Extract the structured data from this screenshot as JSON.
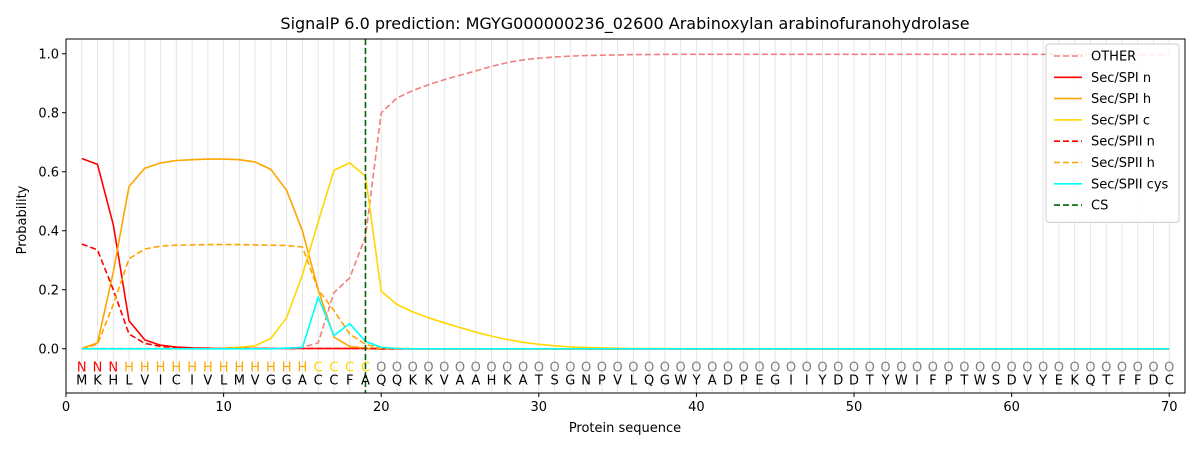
{
  "chart_data": {
    "type": "line",
    "title": "SignalP 6.0 prediction: MGYG000000236_02600 Arabinoxylan arabinofuranohydrolase",
    "xlabel": "Protein sequence",
    "ylabel": "Probability",
    "xlim": [
      0,
      71
    ],
    "ylim": [
      -0.15,
      1.05
    ],
    "xticks": [
      0,
      10,
      20,
      30,
      40,
      50,
      60,
      70
    ],
    "yticks": [
      0.0,
      0.2,
      0.4,
      0.6,
      0.8,
      1.0
    ],
    "xtick_labels": [
      "0",
      "10",
      "20",
      "30",
      "40",
      "50",
      "60",
      "70"
    ],
    "ytick_labels": [
      "0.0",
      "0.2",
      "0.4",
      "0.6",
      "0.8",
      "1.0"
    ],
    "grid": "vertical lines at each residue",
    "legend_position": "top-right",
    "sequence": [
      "M",
      "K",
      "H",
      "L",
      "V",
      "I",
      "C",
      "I",
      "V",
      "L",
      "M",
      "V",
      "G",
      "G",
      "A",
      "C",
      "C",
      "F",
      "A",
      "Q",
      "Q",
      "K",
      "K",
      "V",
      "A",
      "A",
      "H",
      "K",
      "A",
      "T",
      "S",
      "G",
      "N",
      "P",
      "V",
      "L",
      "Q",
      "G",
      "W",
      "Y",
      "A",
      "D",
      "P",
      "E",
      "G",
      "I",
      "I",
      "Y",
      "D",
      "D",
      "T",
      "Y",
      "W",
      "I",
      "F",
      "P",
      "T",
      "W",
      "S",
      "D",
      "V",
      "Y",
      "E",
      "K",
      "Q",
      "T",
      "F",
      "F",
      "D",
      "C"
    ],
    "labels": [
      "N",
      "N",
      "N",
      "H",
      "H",
      "H",
      "H",
      "H",
      "H",
      "H",
      "H",
      "H",
      "H",
      "H",
      "H",
      "C",
      "C",
      "C",
      "C",
      "O",
      "O",
      "O",
      "O",
      "O",
      "O",
      "O",
      "O",
      "O",
      "O",
      "O",
      "O",
      "O",
      "O",
      "O",
      "O",
      "O",
      "O",
      "O",
      "O",
      "O",
      "O",
      "O",
      "O",
      "O",
      "O",
      "O",
      "O",
      "O",
      "O",
      "O",
      "O",
      "O",
      "O",
      "O",
      "O",
      "O",
      "O",
      "O",
      "O",
      "O",
      "O",
      "O",
      "O",
      "O",
      "O",
      "O",
      "O",
      "O",
      "O",
      "O"
    ],
    "label_colors": {
      "N": "#ff0000",
      "H": "#ffa500",
      "C": "#ffd700",
      "O": "#808080"
    },
    "cs_position": 19,
    "series": [
      {
        "name": "OTHER",
        "color": "#f08080",
        "dash": "dashed",
        "values": [
          0.001,
          0.001,
          0.001,
          0.001,
          0.001,
          0.001,
          0.001,
          0.001,
          0.001,
          0.001,
          0.001,
          0.001,
          0.001,
          0.002,
          0.005,
          0.02,
          0.19,
          0.24,
          0.38,
          0.8,
          0.85,
          0.875,
          0.895,
          0.912,
          0.927,
          0.942,
          0.957,
          0.97,
          0.979,
          0.985,
          0.989,
          0.992,
          0.994,
          0.995,
          0.996,
          0.997,
          0.997,
          0.998,
          0.998,
          0.998,
          0.998,
          0.998,
          0.998,
          0.998,
          0.998,
          0.998,
          0.998,
          0.998,
          0.998,
          0.998,
          0.998,
          0.998,
          0.998,
          0.998,
          0.998,
          0.998,
          0.998,
          0.998,
          0.998,
          0.998,
          0.998,
          0.998,
          0.997,
          0.997,
          0.997,
          0.997,
          0.997,
          0.997,
          0.997,
          0.996
        ]
      },
      {
        "name": "Sec/SPI n",
        "color": "#ff0000",
        "dash": "solid",
        "values": [
          0.645,
          0.625,
          0.42,
          0.095,
          0.03,
          0.012,
          0.006,
          0.003,
          0.002,
          0.001,
          0.001,
          0.001,
          0.001,
          0.001,
          0.001,
          0.001,
          0.001,
          0.001,
          0.001,
          0,
          0,
          0,
          0,
          0,
          0,
          0,
          0,
          0,
          0,
          0,
          0,
          0,
          0,
          0,
          0,
          0,
          0,
          0,
          0,
          0,
          0,
          0,
          0,
          0,
          0,
          0,
          0,
          0,
          0,
          0,
          0,
          0,
          0,
          0,
          0,
          0,
          0,
          0,
          0,
          0,
          0,
          0,
          0,
          0,
          0,
          0,
          0,
          0,
          0,
          0
        ]
      },
      {
        "name": "Sec/SPI h",
        "color": "#ffa500",
        "dash": "solid",
        "values": [
          0.001,
          0.02,
          0.26,
          0.55,
          0.612,
          0.63,
          0.638,
          0.641,
          0.643,
          0.643,
          0.641,
          0.633,
          0.608,
          0.537,
          0.4,
          0.2,
          0.04,
          0.008,
          0.002,
          0.001,
          0.001,
          0,
          0,
          0,
          0,
          0,
          0,
          0,
          0,
          0,
          0,
          0,
          0,
          0,
          0,
          0,
          0,
          0,
          0,
          0,
          0,
          0,
          0,
          0,
          0,
          0,
          0,
          0,
          0,
          0,
          0,
          0,
          0,
          0,
          0,
          0,
          0,
          0,
          0,
          0,
          0,
          0,
          0,
          0,
          0,
          0,
          0,
          0,
          0,
          0
        ]
      },
      {
        "name": "Sec/SPI c",
        "color": "#ffd700",
        "dash": "solid",
        "values": [
          0,
          0,
          0,
          0,
          0,
          0,
          0,
          0,
          0,
          0.002,
          0.005,
          0.01,
          0.035,
          0.105,
          0.25,
          0.43,
          0.605,
          0.63,
          0.585,
          0.195,
          0.15,
          0.125,
          0.105,
          0.088,
          0.072,
          0.056,
          0.043,
          0.031,
          0.022,
          0.015,
          0.01,
          0.006,
          0.004,
          0.003,
          0.002,
          0.001,
          0.001,
          0.001,
          0,
          0,
          0,
          0,
          0,
          0,
          0,
          0,
          0,
          0,
          0,
          0,
          0,
          0,
          0,
          0,
          0,
          0,
          0,
          0,
          0,
          0,
          0,
          0,
          0,
          0,
          0,
          0,
          0,
          0,
          0,
          0
        ]
      },
      {
        "name": "Sec/SPII n",
        "color": "#ff0000",
        "dash": "dashed",
        "values": [
          0.355,
          0.335,
          0.2,
          0.05,
          0.018,
          0.008,
          0.004,
          0.002,
          0.001,
          0.001,
          0.001,
          0.001,
          0.001,
          0.001,
          0.001,
          0.001,
          0.001,
          0.001,
          0.001,
          0,
          0,
          0,
          0,
          0,
          0,
          0,
          0,
          0,
          0,
          0,
          0,
          0,
          0,
          0,
          0,
          0,
          0,
          0,
          0,
          0,
          0,
          0,
          0,
          0,
          0,
          0,
          0,
          0,
          0,
          0,
          0,
          0,
          0,
          0,
          0,
          0,
          0,
          0,
          0,
          0,
          0,
          0,
          0,
          0,
          0,
          0,
          0,
          0,
          0,
          0
        ]
      },
      {
        "name": "Sec/SPII h",
        "color": "#ffa500",
        "dash": "dashed",
        "values": [
          0.001,
          0.015,
          0.15,
          0.305,
          0.338,
          0.348,
          0.351,
          0.352,
          0.353,
          0.353,
          0.353,
          0.352,
          0.351,
          0.35,
          0.345,
          0.2,
          0.13,
          0.05,
          0.015,
          0.002,
          0.001,
          0,
          0,
          0,
          0,
          0,
          0,
          0,
          0,
          0,
          0,
          0,
          0,
          0,
          0,
          0,
          0,
          0,
          0,
          0,
          0,
          0,
          0,
          0,
          0,
          0,
          0,
          0,
          0,
          0,
          0,
          0,
          0,
          0,
          0,
          0,
          0,
          0,
          0,
          0,
          0,
          0,
          0,
          0,
          0,
          0,
          0,
          0,
          0,
          0
        ]
      },
      {
        "name": "Sec/SPII cys",
        "color": "#00ffff",
        "dash": "solid",
        "values": [
          0,
          0,
          0,
          0,
          0,
          0,
          0,
          0,
          0,
          0,
          0,
          0,
          0,
          0.002,
          0.004,
          0.175,
          0.045,
          0.085,
          0.025,
          0.005,
          0.001,
          0,
          0,
          0,
          0,
          0,
          0,
          0,
          0,
          0,
          0,
          0,
          0,
          0,
          0,
          0,
          0,
          0,
          0,
          0,
          0,
          0,
          0,
          0,
          0,
          0,
          0,
          0,
          0,
          0,
          0,
          0,
          0,
          0,
          0,
          0,
          0,
          0,
          0,
          0,
          0,
          0,
          0,
          0,
          0,
          0,
          0,
          0,
          0,
          0
        ]
      }
    ],
    "cs_series": {
      "name": "CS",
      "color": "#006400",
      "dash": "dashed"
    }
  }
}
